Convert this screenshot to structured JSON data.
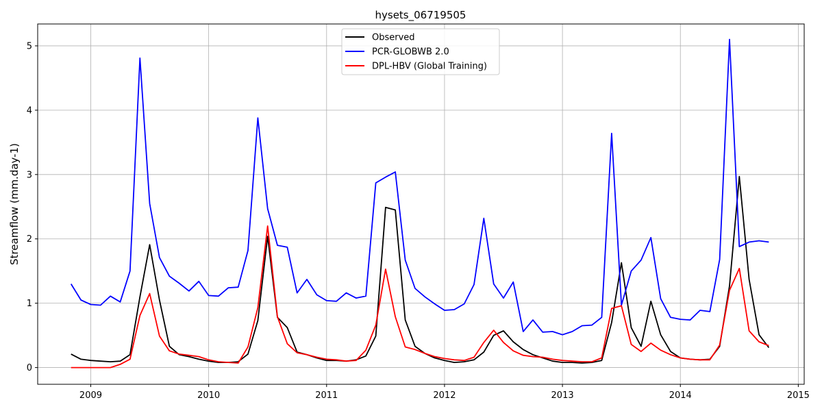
{
  "chart_data": {
    "type": "line",
    "title": "hysets_06719505",
    "xlabel": "",
    "ylabel": "Streamflow (mm.day-1)",
    "xlim": [
      2008.55,
      2015.05
    ],
    "ylim": [
      -0.26,
      5.34
    ],
    "xticks": [
      2009,
      2010,
      2011,
      2012,
      2013,
      2014,
      2015
    ],
    "xtick_labels": [
      "2009",
      "2010",
      "2011",
      "2012",
      "2013",
      "2014",
      "2015"
    ],
    "yticks": [
      0,
      1,
      2,
      3,
      4,
      5
    ],
    "ytick_labels": [
      "0",
      "1",
      "2",
      "3",
      "4",
      "5"
    ],
    "grid": true,
    "legend_position": "top-center",
    "x": [
      2008.833,
      2008.917,
      2009.0,
      2009.083,
      2009.167,
      2009.25,
      2009.333,
      2009.417,
      2009.5,
      2009.583,
      2009.667,
      2009.75,
      2009.833,
      2009.917,
      2010.0,
      2010.083,
      2010.167,
      2010.25,
      2010.333,
      2010.417,
      2010.5,
      2010.583,
      2010.667,
      2010.75,
      2010.833,
      2010.917,
      2011.0,
      2011.083,
      2011.167,
      2011.25,
      2011.333,
      2011.417,
      2011.5,
      2011.583,
      2011.667,
      2011.75,
      2011.833,
      2011.917,
      2012.0,
      2012.083,
      2012.167,
      2012.25,
      2012.333,
      2012.417,
      2012.5,
      2012.583,
      2012.667,
      2012.75,
      2012.833,
      2012.917,
      2013.0,
      2013.083,
      2013.167,
      2013.25,
      2013.333,
      2013.417,
      2013.5,
      2013.583,
      2013.667,
      2013.75,
      2013.833,
      2013.917,
      2014.0,
      2014.083,
      2014.167,
      2014.25,
      2014.333,
      2014.417,
      2014.5,
      2014.583,
      2014.667,
      2014.75
    ],
    "series": [
      {
        "name": "Observed",
        "color": "#000000",
        "values": [
          0.21,
          0.13,
          0.11,
          0.1,
          0.09,
          0.1,
          0.2,
          1.1,
          1.91,
          1.05,
          0.33,
          0.2,
          0.17,
          0.13,
          0.1,
          0.08,
          0.08,
          0.09,
          0.21,
          0.73,
          2.04,
          0.78,
          0.62,
          0.24,
          0.2,
          0.15,
          0.11,
          0.11,
          0.1,
          0.12,
          0.18,
          0.49,
          2.49,
          2.45,
          0.74,
          0.33,
          0.22,
          0.15,
          0.11,
          0.08,
          0.09,
          0.12,
          0.24,
          0.5,
          0.57,
          0.4,
          0.28,
          0.2,
          0.15,
          0.1,
          0.08,
          0.08,
          0.07,
          0.08,
          0.11,
          0.7,
          1.63,
          0.62,
          0.33,
          1.03,
          0.51,
          0.25,
          0.15,
          0.13,
          0.12,
          0.13,
          0.33,
          1.27,
          2.97,
          1.37,
          0.51,
          0.31
        ]
      },
      {
        "name": "PCR-GLOBWB 2.0",
        "color": "#0000ff",
        "values": [
          1.3,
          1.05,
          0.98,
          0.97,
          1.11,
          1.02,
          1.5,
          4.81,
          2.55,
          1.71,
          1.42,
          1.31,
          1.19,
          1.34,
          1.12,
          1.11,
          1.24,
          1.25,
          1.82,
          3.88,
          2.47,
          1.9,
          1.87,
          1.16,
          1.37,
          1.13,
          1.04,
          1.03,
          1.16,
          1.08,
          1.11,
          2.87,
          2.96,
          3.04,
          1.67,
          1.23,
          1.1,
          0.99,
          0.89,
          0.9,
          0.99,
          1.29,
          2.32,
          1.3,
          1.08,
          1.33,
          0.56,
          0.74,
          0.55,
          0.56,
          0.51,
          0.56,
          0.65,
          0.66,
          0.78,
          3.64,
          0.97,
          1.5,
          1.67,
          2.02,
          1.07,
          0.78,
          0.75,
          0.74,
          0.89,
          0.87,
          1.68,
          5.1,
          1.88,
          1.95,
          1.97,
          1.95
        ]
      },
      {
        "name": "DPL-HBV (Global Training)",
        "color": "#ff0000",
        "values": [
          0.0,
          0.0,
          0.0,
          0.0,
          0.0,
          0.05,
          0.13,
          0.81,
          1.15,
          0.49,
          0.26,
          0.21,
          0.19,
          0.17,
          0.12,
          0.09,
          0.08,
          0.07,
          0.32,
          0.93,
          2.2,
          0.79,
          0.37,
          0.23,
          0.2,
          0.16,
          0.13,
          0.12,
          0.1,
          0.11,
          0.27,
          0.66,
          1.53,
          0.79,
          0.32,
          0.28,
          0.22,
          0.17,
          0.14,
          0.12,
          0.11,
          0.16,
          0.39,
          0.58,
          0.39,
          0.26,
          0.19,
          0.17,
          0.16,
          0.13,
          0.11,
          0.1,
          0.09,
          0.09,
          0.15,
          0.92,
          0.96,
          0.36,
          0.25,
          0.38,
          0.27,
          0.2,
          0.15,
          0.13,
          0.12,
          0.12,
          0.35,
          1.2,
          1.54,
          0.57,
          0.4,
          0.34
        ]
      }
    ]
  }
}
